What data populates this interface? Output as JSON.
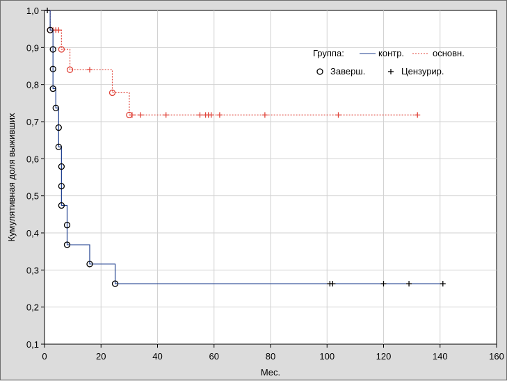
{
  "chart_data": {
    "type": "line",
    "title": "",
    "xlabel": "Мес.",
    "ylabel": "Кумулятивная доля выживших",
    "xlim": [
      0,
      160
    ],
    "ylim": [
      0.1,
      1.0
    ],
    "x_ticks": [
      "0",
      "20",
      "40",
      "60",
      "80",
      "100",
      "120",
      "140",
      "160"
    ],
    "y_ticks": [
      "0,1",
      "0,2",
      "0,3",
      "0,4",
      "0,5",
      "0,6",
      "0,7",
      "0,8",
      "0,9",
      "1,0"
    ],
    "grid": true,
    "legend": {
      "placement": "top-right",
      "group_label": "Группа:",
      "series_labels": [
        "контр.",
        "основн."
      ],
      "marker_labels": [
        "Заверш.",
        "Цензурир."
      ]
    },
    "series": [
      {
        "name": "контр.",
        "color": "#1f3f8f",
        "line_style": "solid",
        "steps": [
          [
            0,
            1.0
          ],
          [
            2,
            0.947
          ],
          [
            3,
            0.895
          ],
          [
            3,
            0.842
          ],
          [
            3,
            0.789
          ],
          [
            4,
            0.737
          ],
          [
            5,
            0.684
          ],
          [
            5,
            0.632
          ],
          [
            6,
            0.579
          ],
          [
            6,
            0.526
          ],
          [
            6,
            0.474
          ],
          [
            8,
            0.421
          ],
          [
            8,
            0.368
          ],
          [
            16,
            0.316
          ],
          [
            25,
            0.263
          ],
          [
            141,
            0.263
          ]
        ],
        "completed": [
          [
            2,
            0.947
          ],
          [
            3,
            0.895
          ],
          [
            3,
            0.842
          ],
          [
            3,
            0.789
          ],
          [
            4,
            0.737
          ],
          [
            5,
            0.684
          ],
          [
            5,
            0.632
          ],
          [
            6,
            0.579
          ],
          [
            6,
            0.526
          ],
          [
            6,
            0.474
          ],
          [
            8,
            0.421
          ],
          [
            8,
            0.368
          ],
          [
            16,
            0.316
          ],
          [
            25,
            0.263
          ]
        ],
        "censored": [
          [
            1,
            1.0
          ],
          [
            101,
            0.263
          ],
          [
            102,
            0.263
          ],
          [
            120,
            0.263
          ],
          [
            129,
            0.263
          ],
          [
            141,
            0.263
          ]
        ]
      },
      {
        "name": "основн.",
        "color": "#e0443a",
        "line_style": "dotted",
        "steps": [
          [
            0,
            1.0
          ],
          [
            2,
            0.947
          ],
          [
            6,
            0.895
          ],
          [
            9,
            0.84
          ],
          [
            24,
            0.778
          ],
          [
            30,
            0.718
          ],
          [
            132,
            0.718
          ]
        ],
        "completed": [
          [
            2,
            0.947
          ],
          [
            6,
            0.895
          ],
          [
            9,
            0.84
          ],
          [
            24,
            0.778
          ],
          [
            30,
            0.718
          ]
        ],
        "censored": [
          [
            3,
            0.947
          ],
          [
            4,
            0.947
          ],
          [
            5,
            0.947
          ],
          [
            16,
            0.84
          ],
          [
            31,
            0.718
          ],
          [
            34,
            0.718
          ],
          [
            43,
            0.718
          ],
          [
            55,
            0.718
          ],
          [
            57,
            0.718
          ],
          [
            58,
            0.718
          ],
          [
            59,
            0.718
          ],
          [
            62,
            0.718
          ],
          [
            78,
            0.718
          ],
          [
            104,
            0.718
          ],
          [
            132,
            0.718
          ]
        ]
      }
    ]
  }
}
